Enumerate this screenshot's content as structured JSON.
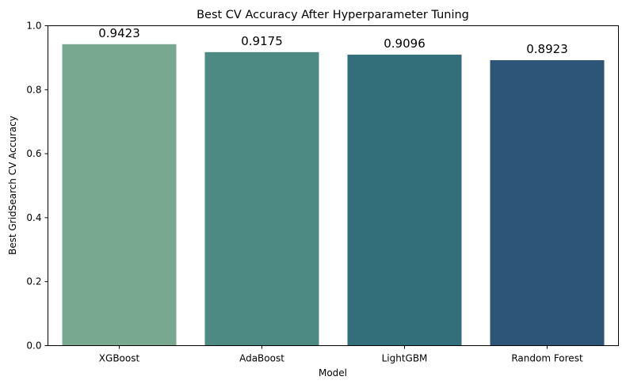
{
  "chart_data": {
    "type": "bar",
    "title": "Best CV Accuracy After Hyperparameter Tuning",
    "xlabel": "Model",
    "ylabel": "Best GridSearch CV Accuracy",
    "categories": [
      "XGBoost",
      "AdaBoost",
      "LightGBM",
      "Random Forest"
    ],
    "values": [
      0.9423,
      0.9175,
      0.9096,
      0.8923
    ],
    "value_labels": [
      "0.9423",
      "0.9175",
      "0.9096",
      "0.8923"
    ],
    "ylim": [
      0,
      1.0
    ],
    "yticks": [
      0.0,
      0.2,
      0.4,
      0.6,
      0.8,
      1.0
    ],
    "ytick_labels": [
      "0.0",
      "0.2",
      "0.4",
      "0.6",
      "0.8",
      "1.0"
    ],
    "grid": false,
    "legend": "none",
    "colors": [
      "#78a88f",
      "#4e8a84",
      "#336e7b",
      "#2d5577"
    ]
  }
}
